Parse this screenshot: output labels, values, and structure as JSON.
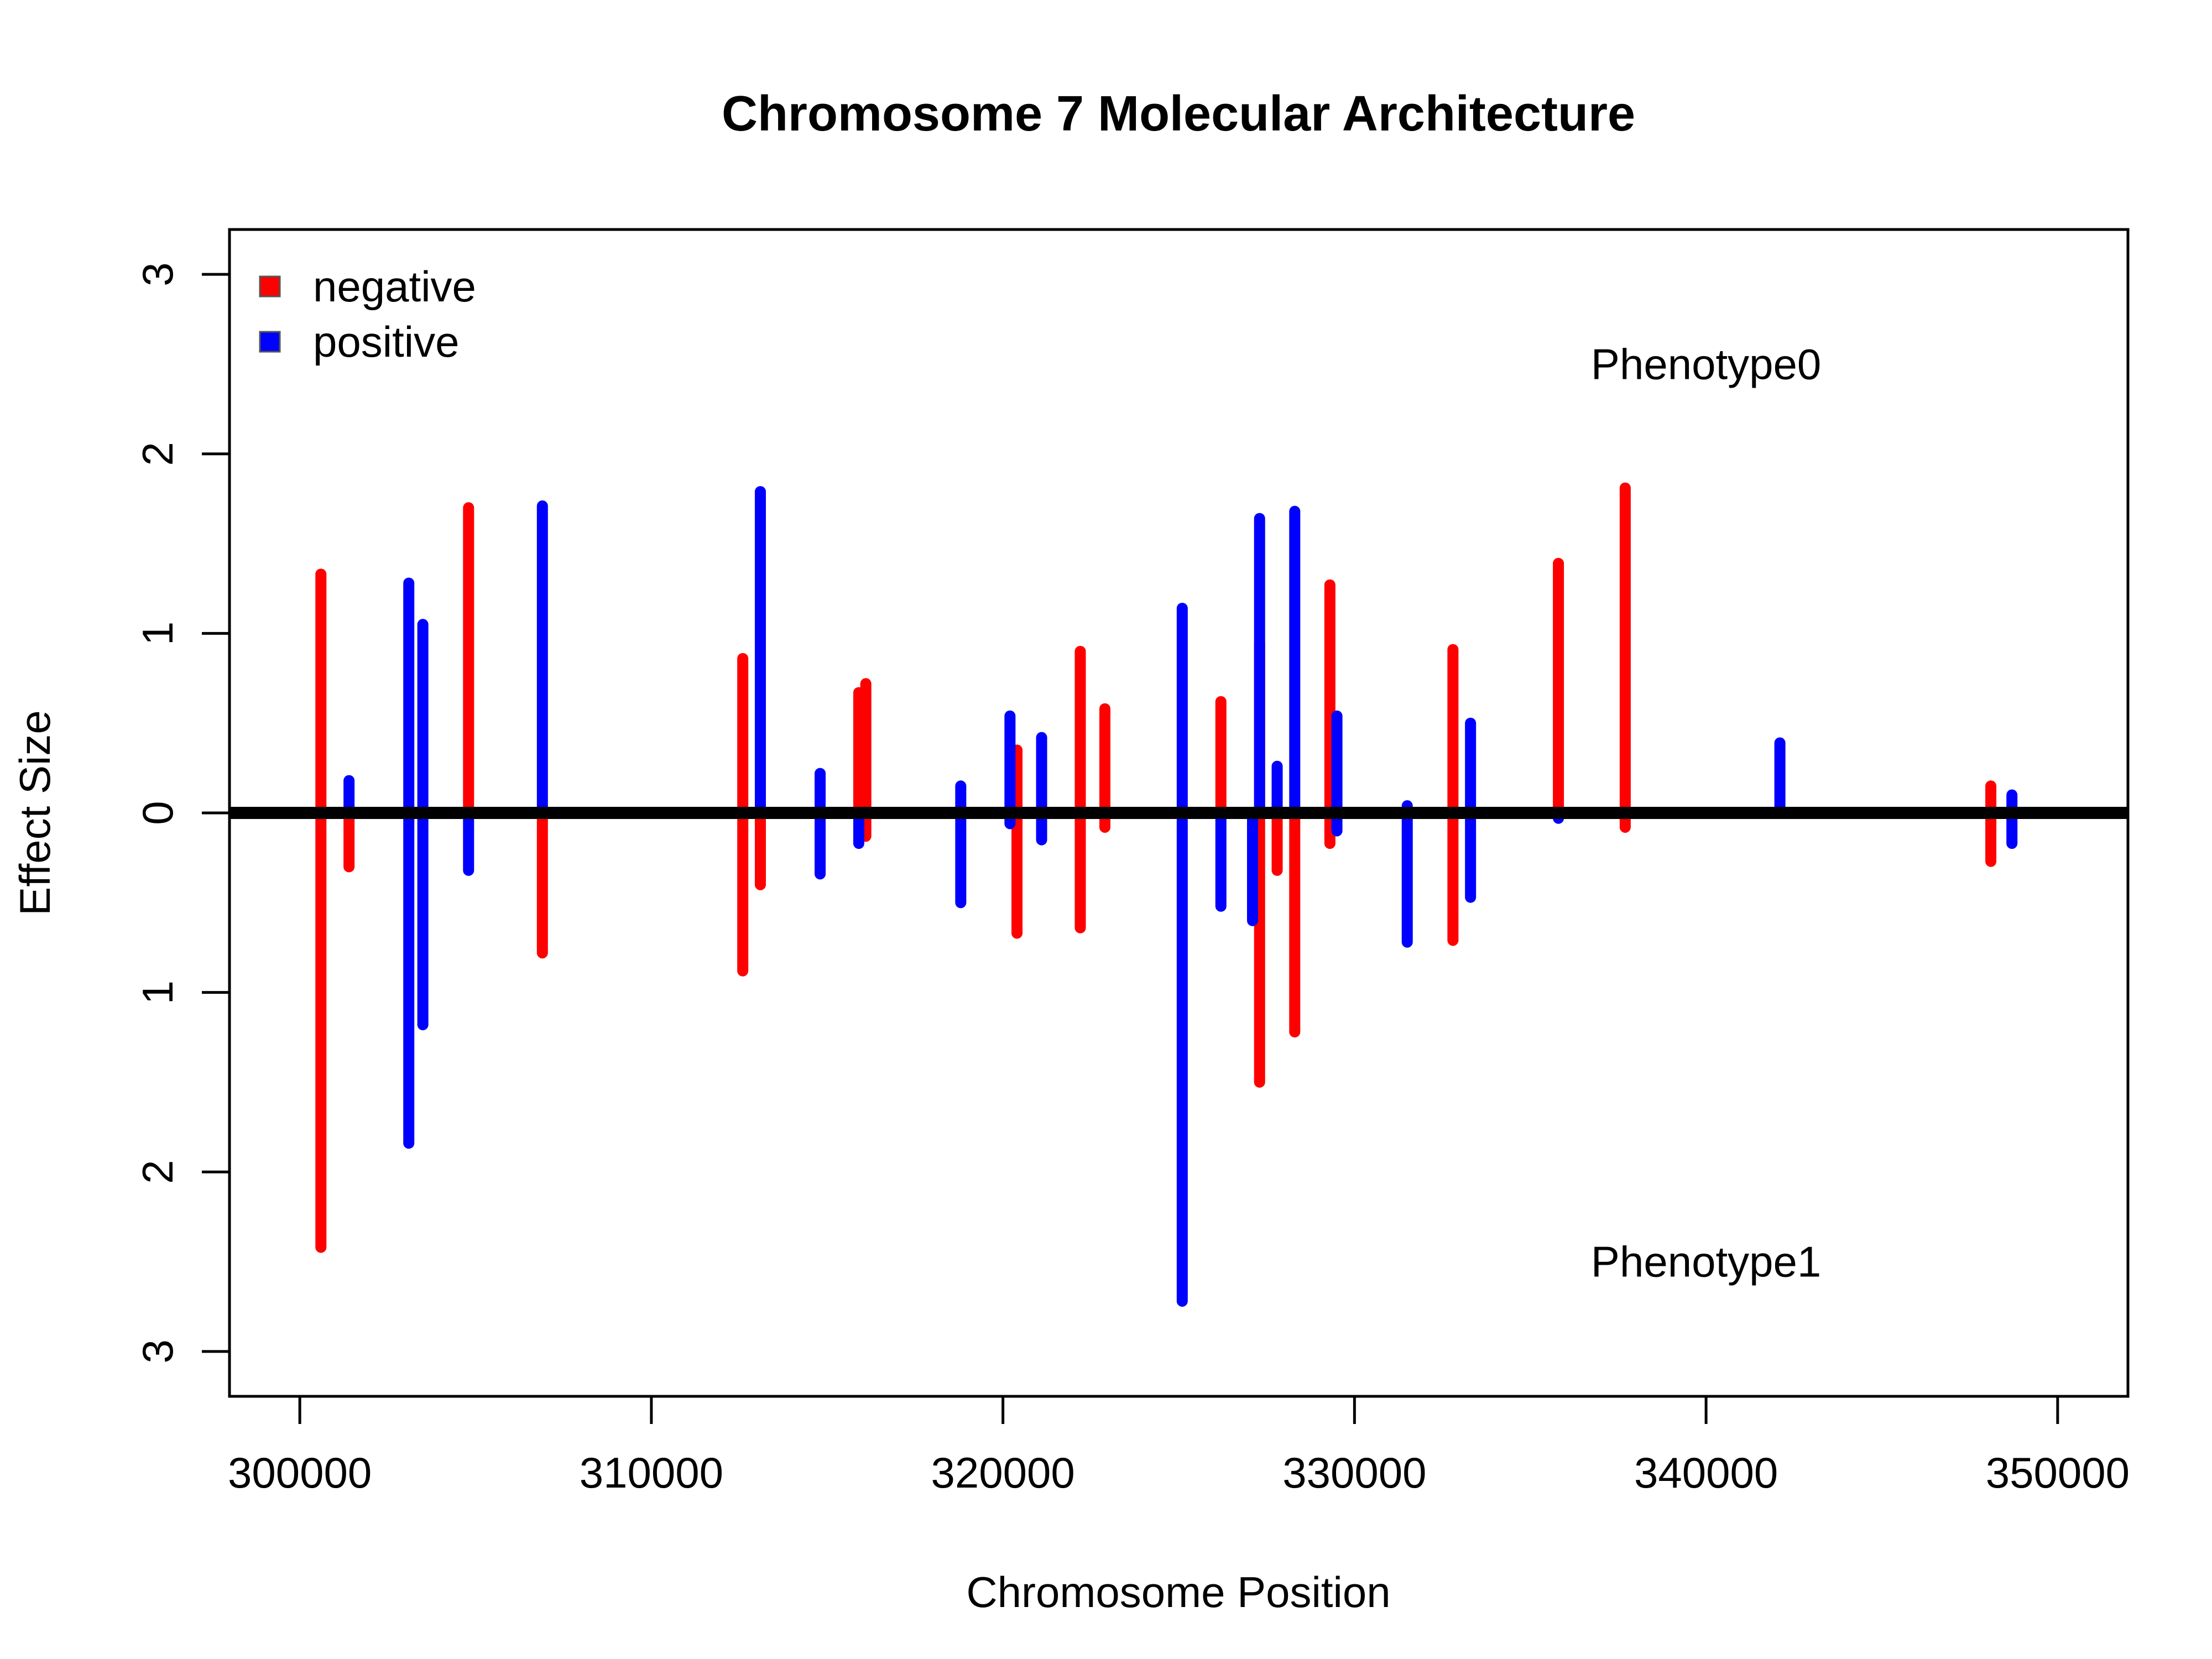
{
  "chart_data": {
    "type": "bar",
    "title": "Chromosome 7 Molecular Architecture",
    "xlabel": "Chromosome Position",
    "ylabel": "Effect Size",
    "xlim": [
      298000,
      352000
    ],
    "ylim": [
      -3.25,
      3.25
    ],
    "x_ticks": [
      300000,
      310000,
      320000,
      330000,
      340000,
      350000
    ],
    "y_ticks": [
      3,
      2,
      1,
      0,
      -1,
      -2,
      -3
    ],
    "y_tick_labels": [
      "3",
      "2",
      "1",
      "0",
      "1",
      "2",
      "3"
    ],
    "legend": {
      "position": "top-left",
      "entries": [
        {
          "label": "negative",
          "color": "#ff0000"
        },
        {
          "label": "positive",
          "color": "#0000ff"
        }
      ]
    },
    "annotations": [
      {
        "text": "Phenotype0",
        "x": 340000,
        "y": 2.5
      },
      {
        "text": "Phenotype1",
        "x": 340000,
        "y": -2.5
      }
    ],
    "baseline": 0,
    "series": [
      {
        "name": "negative",
        "color": "#ff0000",
        "segments": [
          {
            "x": 300600,
            "top": 1.33,
            "bottom": -2.42
          },
          {
            "x": 301400,
            "top": 0.0,
            "bottom": -0.3
          },
          {
            "x": 304800,
            "top": 1.7,
            "bottom": 0.0
          },
          {
            "x": 306900,
            "top": 0.0,
            "bottom": -0.78
          },
          {
            "x": 312600,
            "top": 0.86,
            "bottom": -0.88
          },
          {
            "x": 313100,
            "top": 0.0,
            "bottom": -0.4
          },
          {
            "x": 316100,
            "top": 0.72,
            "bottom": -0.13
          },
          {
            "x": 315900,
            "top": 0.67,
            "bottom": 0.0
          },
          {
            "x": 320400,
            "top": 0.35,
            "bottom": -0.67
          },
          {
            "x": 322200,
            "top": 0.9,
            "bottom": -0.64
          },
          {
            "x": 322900,
            "top": 0.58,
            "bottom": -0.08
          },
          {
            "x": 326200,
            "top": 0.62,
            "bottom": 0.0
          },
          {
            "x": 327300,
            "top": 0.95,
            "bottom": -1.5
          },
          {
            "x": 327800,
            "top": 0.0,
            "bottom": -0.32
          },
          {
            "x": 328300,
            "top": 0.0,
            "bottom": -1.22
          },
          {
            "x": 329300,
            "top": 1.27,
            "bottom": -0.17
          },
          {
            "x": 332800,
            "top": 0.91,
            "bottom": -0.71
          },
          {
            "x": 335800,
            "top": 1.39,
            "bottom": 0.0
          },
          {
            "x": 337700,
            "top": 1.81,
            "bottom": -0.08
          },
          {
            "x": 348100,
            "top": 0.15,
            "bottom": -0.27
          }
        ]
      },
      {
        "name": "positive",
        "color": "#0000ff",
        "segments": [
          {
            "x": 301400,
            "top": 0.18,
            "bottom": 0.0
          },
          {
            "x": 303100,
            "top": 1.28,
            "bottom": -1.84
          },
          {
            "x": 303500,
            "top": 1.05,
            "bottom": -1.18
          },
          {
            "x": 304800,
            "top": 0.0,
            "bottom": -0.32
          },
          {
            "x": 306900,
            "top": 1.71,
            "bottom": 0.0
          },
          {
            "x": 313100,
            "top": 1.79,
            "bottom": 0.0
          },
          {
            "x": 314800,
            "top": 0.22,
            "bottom": -0.34
          },
          {
            "x": 315900,
            "top": 0.0,
            "bottom": -0.17
          },
          {
            "x": 318800,
            "top": 0.15,
            "bottom": -0.5
          },
          {
            "x": 320200,
            "top": 0.54,
            "bottom": -0.06
          },
          {
            "x": 321100,
            "top": 0.42,
            "bottom": -0.15
          },
          {
            "x": 325100,
            "top": 1.14,
            "bottom": -2.72
          },
          {
            "x": 326200,
            "top": 0.0,
            "bottom": -0.52
          },
          {
            "x": 327100,
            "top": 0.0,
            "bottom": -0.6
          },
          {
            "x": 327300,
            "top": 1.64,
            "bottom": 0.0
          },
          {
            "x": 327800,
            "top": 0.26,
            "bottom": 0.0
          },
          {
            "x": 328300,
            "top": 1.68,
            "bottom": 0.0
          },
          {
            "x": 329500,
            "top": 0.54,
            "bottom": -0.1
          },
          {
            "x": 331500,
            "top": 0.04,
            "bottom": -0.72
          },
          {
            "x": 333300,
            "top": 0.5,
            "bottom": -0.47
          },
          {
            "x": 335800,
            "top": 0.0,
            "bottom": -0.03
          },
          {
            "x": 342100,
            "top": 0.39,
            "bottom": 0.0
          },
          {
            "x": 348700,
            "top": 0.1,
            "bottom": -0.17
          }
        ]
      }
    ]
  }
}
